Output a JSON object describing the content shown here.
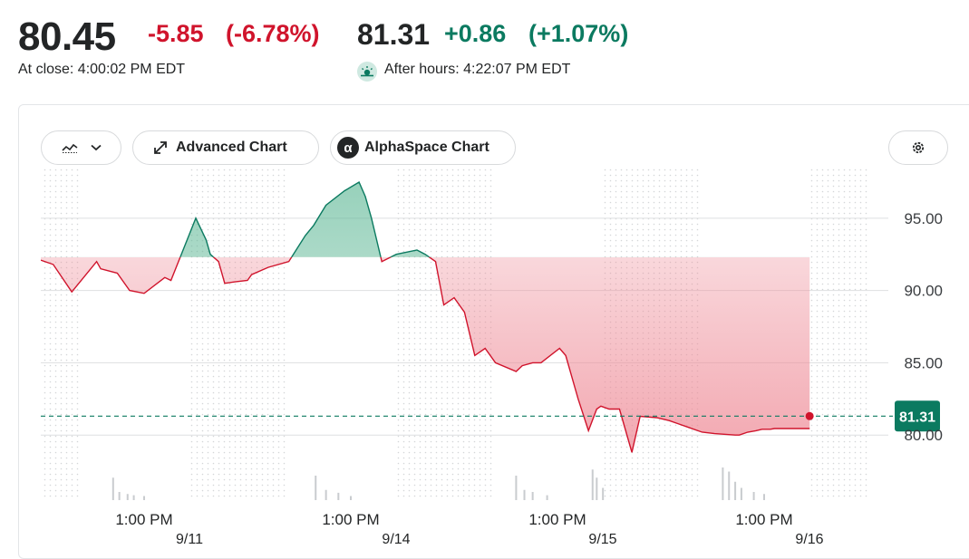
{
  "quote": {
    "close_price": "80.45",
    "close_change": "-5.85",
    "close_change_pct": "(-6.78%)",
    "close_time": "At close: 4:00:02 PM EDT",
    "after_hours_price": "81.31",
    "after_hours_change": "+0.86",
    "after_hours_change_pct": "(+1.07%)",
    "after_hours_time": "After hours: 4:22:07 PM EDT",
    "after_hours_icon": "sunset-icon"
  },
  "toolbar": {
    "chart_type_icon": "line-chart-icon",
    "dropdown_icon": "chevron-down-icon",
    "advanced_label": "Advanced Chart",
    "advanced_icon": "expand-arrows-icon",
    "alphaspace_label": "AlphaSpace Chart",
    "alphaspace_icon": "alpha-icon",
    "settings_icon": "gear-icon"
  },
  "colors": {
    "up": "#0b7a60",
    "down": "#d0142c",
    "up_fill": "#5fb896",
    "down_fill": "#ee8a96",
    "grid": "#dedfe1",
    "volume": "#c9cccf"
  },
  "chart_data": {
    "type": "area",
    "baseline": 92.3,
    "current_price": 81.31,
    "current_price_label": "81.31",
    "ylim": [
      75.5,
      98.5
    ],
    "y_ticks": [
      {
        "value": 95,
        "label": "95.00"
      },
      {
        "value": 90,
        "label": "90.00"
      },
      {
        "value": 85,
        "label": "85.00"
      },
      {
        "value": 80,
        "label": "80.00"
      }
    ],
    "x_range": [
      0,
      4
    ],
    "x_ticks": [
      {
        "x": 0.5,
        "label": "1:00 PM",
        "date": "9/11"
      },
      {
        "x": 1.5,
        "label": "1:00 PM",
        "date": "9/14"
      },
      {
        "x": 2.5,
        "label": "1:00 PM",
        "date": "9/15"
      },
      {
        "x": 3.5,
        "label": "1:00 PM",
        "date": "9/16"
      }
    ],
    "extended_hours_bands": [
      [
        0,
        0.19
      ],
      [
        0.72,
        1.19
      ],
      [
        1.72,
        2.19
      ],
      [
        2.72,
        3.19
      ],
      [
        3.72,
        4.0
      ]
    ],
    "series": [
      {
        "x": [
          0,
          0.06,
          0.15,
          0.27,
          0.29,
          0.37,
          0.43,
          0.5,
          0.6,
          0.63,
          0.75,
          0.8,
          0.82,
          0.86,
          0.89,
          0.94,
          1.0,
          1.02,
          1.1,
          1.2,
          1.28,
          1.32,
          1.38,
          1.47,
          1.54,
          1.57,
          1.6,
          1.65,
          1.72,
          1.82,
          1.86,
          1.91,
          1.95,
          2.0,
          2.05,
          2.1,
          2.15,
          2.2,
          2.3,
          2.33,
          2.38,
          2.42,
          2.51,
          2.54,
          2.6,
          2.65,
          2.69,
          2.71,
          2.75,
          2.8,
          2.86,
          2.9,
          2.98,
          3.04,
          3.08,
          3.14,
          3.2,
          3.26,
          3.36,
          3.38,
          3.42,
          3.46,
          3.49,
          3.53,
          3.55,
          3.59,
          3.63,
          3.66,
          3.69,
          3.72
        ],
        "y": [
          92.1,
          91.8,
          89.9,
          92.0,
          91.5,
          91.2,
          90.0,
          89.8,
          90.9,
          90.7,
          95.0,
          93.5,
          92.5,
          92.0,
          90.5,
          90.6,
          90.7,
          91.1,
          91.6,
          92.0,
          93.8,
          94.5,
          95.9,
          96.9,
          97.5,
          96.5,
          95.0,
          92.0,
          92.5,
          92.8,
          92.5,
          92.0,
          89.0,
          89.5,
          88.5,
          85.5,
          86.0,
          85.0,
          84.4,
          84.8,
          85.0,
          85.0,
          86.0,
          85.5,
          82.5,
          80.3,
          81.8,
          82.0,
          81.8,
          81.8,
          78.8,
          81.3,
          81.2,
          81.0,
          80.8,
          80.5,
          80.2,
          80.1,
          80.0,
          80.0,
          80.2,
          80.3,
          80.4,
          80.4,
          80.45,
          80.45,
          80.45,
          80.45,
          80.45,
          80.45
        ]
      }
    ],
    "volume_bars": [
      {
        "x": 0.35,
        "v": 0.55
      },
      {
        "x": 0.38,
        "v": 0.2
      },
      {
        "x": 0.42,
        "v": 0.15
      },
      {
        "x": 0.45,
        "v": 0.12
      },
      {
        "x": 0.5,
        "v": 0.1
      },
      {
        "x": 1.33,
        "v": 0.6
      },
      {
        "x": 1.38,
        "v": 0.25
      },
      {
        "x": 1.44,
        "v": 0.18
      },
      {
        "x": 1.5,
        "v": 0.1
      },
      {
        "x": 2.3,
        "v": 0.6
      },
      {
        "x": 2.34,
        "v": 0.25
      },
      {
        "x": 2.38,
        "v": 0.2
      },
      {
        "x": 2.45,
        "v": 0.12
      },
      {
        "x": 2.67,
        "v": 0.75
      },
      {
        "x": 2.69,
        "v": 0.55
      },
      {
        "x": 2.72,
        "v": 0.3
      },
      {
        "x": 3.3,
        "v": 0.8
      },
      {
        "x": 3.33,
        "v": 0.7
      },
      {
        "x": 3.36,
        "v": 0.45
      },
      {
        "x": 3.39,
        "v": 0.3
      },
      {
        "x": 3.45,
        "v": 0.2
      },
      {
        "x": 3.5,
        "v": 0.15
      }
    ]
  }
}
